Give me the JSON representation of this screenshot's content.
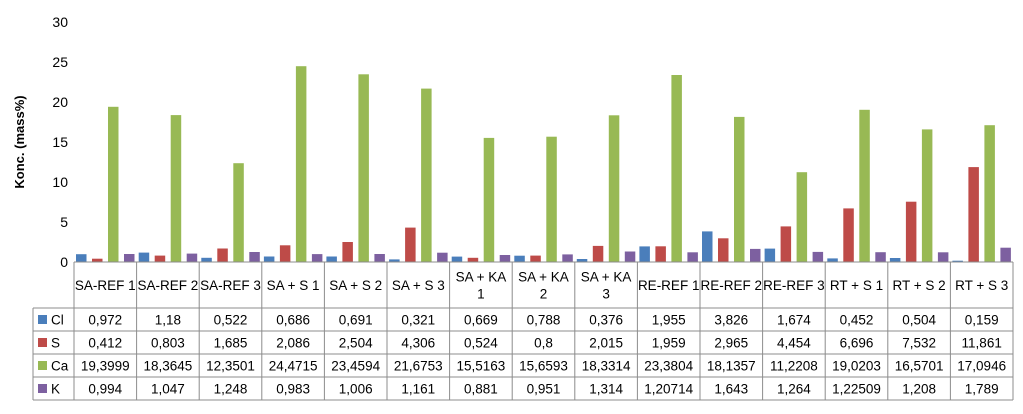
{
  "chart_data": {
    "type": "bar",
    "ylabel": "Konc. (mass%)",
    "ylim": [
      0,
      30
    ],
    "yticks": [
      "0",
      "5",
      "10",
      "15",
      "20",
      "25",
      "30"
    ],
    "ytick_values": [
      0,
      5,
      10,
      15,
      20,
      25,
      30
    ],
    "grid": false,
    "legend": "data-table-left",
    "categories": [
      [
        "SA-REF 1"
      ],
      [
        "SA-REF 2"
      ],
      [
        "SA-REF 3"
      ],
      [
        "SA + S 1"
      ],
      [
        "SA + S 2"
      ],
      [
        "SA + S 3"
      ],
      [
        "SA + KA",
        "1"
      ],
      [
        "SA + KA",
        "2"
      ],
      [
        "SA + KA",
        "3"
      ],
      [
        "RE-REF 1"
      ],
      [
        "RE-REF 2"
      ],
      [
        "RE-REF 3"
      ],
      [
        "RT + S 1"
      ],
      [
        "RT + S 2"
      ],
      [
        "RT + S 3"
      ]
    ],
    "series": [
      {
        "name": "Cl",
        "color": "#4a7ebb",
        "values": [
          0.972,
          1.18,
          0.522,
          0.686,
          0.691,
          0.321,
          0.669,
          0.788,
          0.376,
          1.955,
          3.826,
          1.674,
          0.452,
          0.504,
          0.159
        ],
        "labels": [
          "0,972",
          "1,18",
          "0,522",
          "0,686",
          "0,691",
          "0,321",
          "0,669",
          "0,788",
          "0,376",
          "1,955",
          "3,826",
          "1,674",
          "0,452",
          "0,504",
          "0,159"
        ]
      },
      {
        "name": "S",
        "color": "#be4b48",
        "values": [
          0.412,
          0.803,
          1.685,
          2.086,
          2.504,
          4.306,
          0.524,
          0.8,
          2.015,
          1.959,
          2.965,
          4.454,
          6.696,
          7.532,
          11.861
        ],
        "labels": [
          "0,412",
          "0,803",
          "1,685",
          "2,086",
          "2,504",
          "4,306",
          "0,524",
          "0,8",
          "2,015",
          "1,959",
          "2,965",
          "4,454",
          "6,696",
          "7,532",
          "11,861"
        ]
      },
      {
        "name": "Ca",
        "color": "#98b954",
        "values": [
          19.3999,
          18.3645,
          12.3501,
          24.4715,
          23.4594,
          21.6753,
          15.5163,
          15.6593,
          18.3314,
          23.3804,
          18.1357,
          11.2208,
          19.0203,
          16.5701,
          17.0946
        ],
        "labels": [
          "19,3999",
          "18,3645",
          "12,3501",
          "24,4715",
          "23,4594",
          "21,6753",
          "15,5163",
          "15,6593",
          "18,3314",
          "23,3804",
          "18,1357",
          "11,2208",
          "19,0203",
          "16,5701",
          "17,0946"
        ]
      },
      {
        "name": "K",
        "color": "#7d60a0",
        "values": [
          0.994,
          1.047,
          1.248,
          0.983,
          1.006,
          1.161,
          0.881,
          0.951,
          1.314,
          1.20714,
          1.643,
          1.264,
          1.22509,
          1.208,
          1.789
        ],
        "labels": [
          "0,994",
          "1,047",
          "1,248",
          "0,983",
          "1,006",
          "1,161",
          "0,881",
          "0,951",
          "1,314",
          "1,20714",
          "1,643",
          "1,264",
          "1,22509",
          "1,208",
          "1,789"
        ]
      }
    ]
  }
}
